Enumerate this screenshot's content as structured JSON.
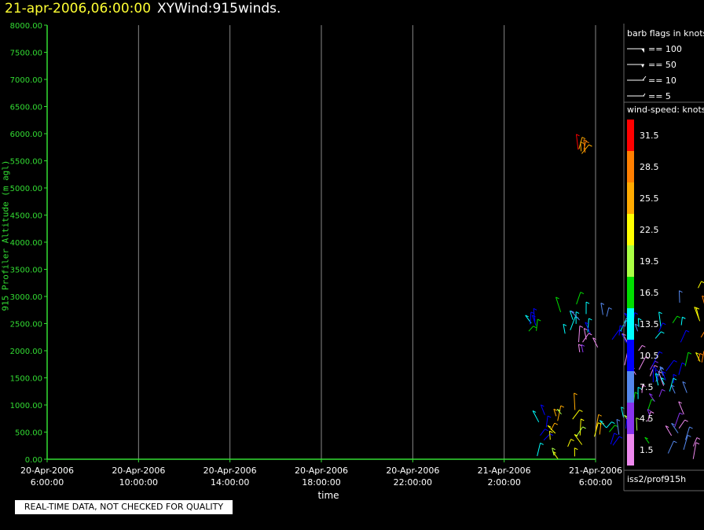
{
  "title": {
    "timestamp": "21-apr-2006,06:00:00",
    "dataset": "XYWind:915winds."
  },
  "quality_notice": "REAL-TIME DATA, NOT CHECKED FOR QUALITY",
  "source_label": "iss2/prof915h",
  "legend": {
    "barb_title": "barb flags in knots",
    "barb_entries": [
      "== 100",
      "== 50",
      "== 10",
      "== 5"
    ],
    "speed_title": "wind-speed: knots",
    "speed_bins": [
      {
        "label": "31.5",
        "color": "#ff0000"
      },
      {
        "label": "28.5",
        "color": "#ff7f00"
      },
      {
        "label": "25.5",
        "color": "#ffaa00"
      },
      {
        "label": "22.5",
        "color": "#ffff00"
      },
      {
        "label": "19.5",
        "color": "#aaff44"
      },
      {
        "label": "16.5",
        "color": "#00dd00"
      },
      {
        "label": "13.5",
        "color": "#00ffff"
      },
      {
        "label": "10.5",
        "color": "#0000ff"
      },
      {
        "label": "7.5",
        "color": "#5588ee"
      },
      {
        "label": "4.5",
        "color": "#8833ee"
      },
      {
        "label": "1.5",
        "color": "#ee88ee"
      }
    ]
  },
  "colors": {
    "axis": "#33dd33",
    "grid": "#888888",
    "background": "#000000",
    "timestamp": "#ffff33"
  },
  "chart_data": {
    "type": "scatter",
    "ylabel": "915 Profiler Altitude (m agl)",
    "xlabel": "time",
    "ylim": [
      0,
      8000
    ],
    "yticks": [
      "0.00",
      "500.00",
      "1000.00",
      "1500.00",
      "2000.00",
      "2500.00",
      "3000.00",
      "3500.00",
      "4000.00",
      "4500.00",
      "5000.00",
      "5500.00",
      "6000.00",
      "6500.00",
      "7000.00",
      "7500.00",
      "8000.00"
    ],
    "xticks": [
      {
        "date": "20-Apr-2006",
        "time": "6:00:00"
      },
      {
        "date": "20-Apr-2006",
        "time": "10:00:00"
      },
      {
        "date": "20-Apr-2006",
        "time": "14:00:00"
      },
      {
        "date": "20-Apr-2006",
        "time": "18:00:00"
      },
      {
        "date": "20-Apr-2006",
        "time": "22:00:00"
      },
      {
        "date": "21-Apr-2006",
        "time": "2:00:00"
      },
      {
        "date": "21-Apr-2006",
        "time": "6:00:00"
      }
    ],
    "grid": true,
    "barb_clusters": [
      {
        "t0": 20.9,
        "t1": 21.9,
        "h0": 2350,
        "h1": 2550,
        "spd": 13
      },
      {
        "t0": 21.4,
        "t1": 21.9,
        "h0": 0,
        "h1": 1250,
        "spd": 14
      },
      {
        "t0": 22.0,
        "t1": 23.2,
        "h0": 2300,
        "h1": 2900,
        "spd": 14
      },
      {
        "t0": 22.0,
        "t1": 24.2,
        "h0": 0,
        "h1": 1000,
        "spd": 23
      },
      {
        "t0": 23.0,
        "t1": 24.5,
        "h0": 2300,
        "h1": 2800,
        "spd": 10
      },
      {
        "t0": 23.2,
        "t1": 24.2,
        "h0": 1750,
        "h1": 2300,
        "spd": 3
      },
      {
        "t0": 24.3,
        "t1": 25.6,
        "h0": 0,
        "h1": 800,
        "spd": 12
      },
      {
        "t0": 24.6,
        "t1": 26.0,
        "h0": 2100,
        "h1": 2850,
        "spd": 10
      },
      {
        "t0": 25.2,
        "t1": 26.0,
        "h0": 1550,
        "h1": 2150,
        "spd": 2
      },
      {
        "t0": 25.4,
        "t1": 26.4,
        "h0": 200,
        "h1": 1250,
        "spd": 18
      },
      {
        "t0": 26.0,
        "t1": 27.0,
        "h0": 700,
        "h1": 1750,
        "spd": 3
      },
      {
        "t0": 26.5,
        "t1": 28.0,
        "h0": 1200,
        "h1": 2900,
        "spd": 12
      },
      {
        "t0": 27.0,
        "t1": 28.3,
        "h0": 0,
        "h1": 900,
        "spd": 5
      },
      {
        "t0": 28.4,
        "t1": 29.0,
        "h0": 1600,
        "h1": 3200,
        "spd": 27
      },
      {
        "t0": 28.7,
        "t1": 29.1,
        "h0": 2700,
        "h1": 3200,
        "spd": 32
      },
      {
        "t0": 23.2,
        "t1": 23.6,
        "h0": 5550,
        "h1": 5750,
        "spd": 27
      }
    ]
  }
}
